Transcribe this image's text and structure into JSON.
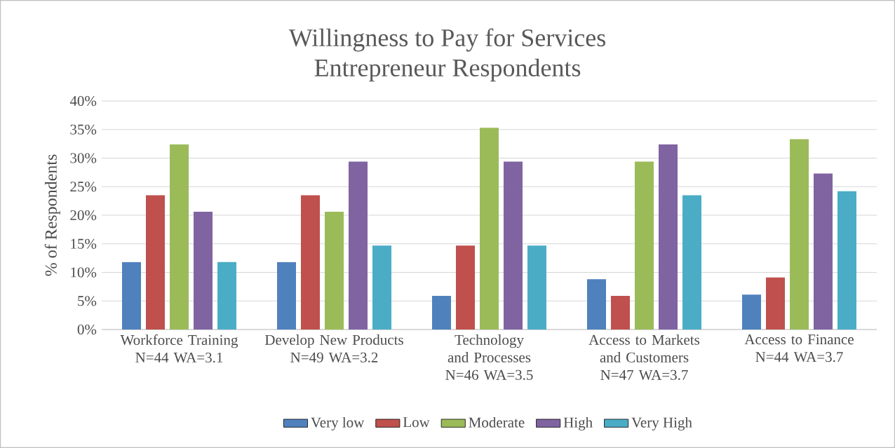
{
  "chart_data": {
    "type": "bar",
    "title": "Willingness to Pay for Services",
    "subtitle": "Entrepreneur Respondents",
    "ylabel": "% of Respondents",
    "categories": [
      "Workforce Training N=44 WA=3.1",
      "Develop New Products N=49 WA=3.2",
      "Technology and Processes N=46 WA=3.5",
      "Access to Markets and Customers N=47 WA=3.7",
      "Access to Finance N=44 WA=3.7"
    ],
    "series": [
      {
        "name": "Very low",
        "color": "#4f81bd",
        "values": [
          11.8,
          11.8,
          5.9,
          8.8,
          6.1
        ]
      },
      {
        "name": "Low",
        "color": "#c0504d",
        "values": [
          23.5,
          23.5,
          14.7,
          5.9,
          9.1
        ]
      },
      {
        "name": "Moderate",
        "color": "#9bbb59",
        "values": [
          32.4,
          20.6,
          35.3,
          29.4,
          33.3
        ]
      },
      {
        "name": "High",
        "color": "#8064a2",
        "values": [
          20.6,
          29.4,
          29.4,
          32.4,
          27.3
        ]
      },
      {
        "name": "Very High",
        "color": "#4bacc6",
        "values": [
          11.8,
          14.7,
          14.7,
          23.5,
          24.2
        ]
      }
    ],
    "ylim": [
      0,
      40
    ],
    "yticks": [
      {
        "value": 0,
        "label": "0%"
      },
      {
        "value": 5,
        "label": "5%"
      },
      {
        "value": 10,
        "label": "10%"
      },
      {
        "value": 15,
        "label": "15%"
      },
      {
        "value": 20,
        "label": "20%"
      },
      {
        "value": 25,
        "label": "25%"
      },
      {
        "value": 30,
        "label": "30%"
      },
      {
        "value": 35,
        "label": "35%"
      },
      {
        "value": 40,
        "label": "40%"
      }
    ],
    "grid": "y",
    "legend": "bottom"
  }
}
